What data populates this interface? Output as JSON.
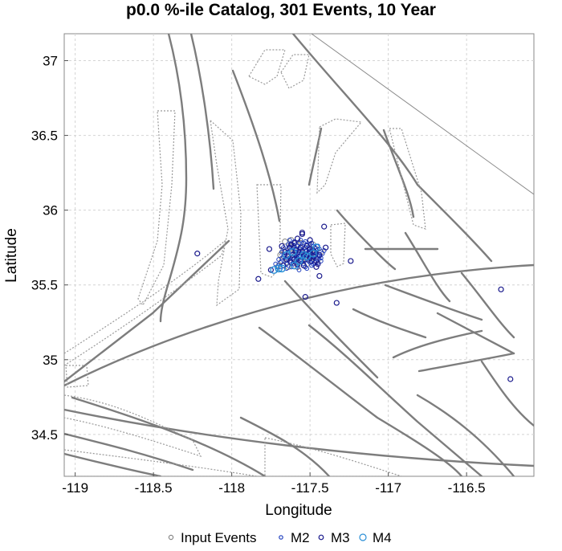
{
  "chart_data": {
    "type": "scatter",
    "title": "p0.0 %-ile Catalog, 301 Events, 10 Year",
    "xlabel": "Longitude",
    "ylabel": "Latitude",
    "xlim": [
      -119.07,
      -116.07
    ],
    "ylim": [
      34.22,
      37.18
    ],
    "x_ticks": [
      -119,
      -118.5,
      -118,
      -117.5,
      -117,
      -116.5
    ],
    "x_tick_labels": [
      "-119",
      "-118.5",
      "-118",
      "-117.5",
      "-117",
      "-116.5"
    ],
    "y_ticks": [
      34.5,
      35,
      35.5,
      36,
      36.5,
      37
    ],
    "y_tick_labels": [
      "34.5",
      "35",
      "35.5",
      "36",
      "36.5",
      "37"
    ],
    "grid": true,
    "legend_position": "bottom",
    "series_colors": {
      "Input Events": "#888888",
      "M2": "#1f3fbf",
      "M3": "#1a1a8c",
      "M4": "#2a8fd6"
    },
    "series": [
      {
        "name": "Input Events",
        "points": [
          [
            -117.66,
            35.79
          ],
          [
            -117.62,
            35.8
          ],
          [
            -117.58,
            35.77
          ],
          [
            -117.55,
            35.73
          ],
          [
            -117.5,
            35.72
          ],
          [
            -117.47,
            35.71
          ],
          [
            -117.63,
            35.76
          ],
          [
            -117.6,
            35.74
          ],
          [
            -117.57,
            35.7
          ],
          [
            -117.53,
            35.69
          ],
          [
            -117.49,
            35.68
          ],
          [
            -117.45,
            35.67
          ],
          [
            -117.65,
            35.68
          ],
          [
            -117.68,
            35.66
          ],
          [
            -117.7,
            35.63
          ],
          [
            -117.59,
            35.65
          ],
          [
            -117.55,
            35.66
          ],
          [
            -117.51,
            35.75
          ],
          [
            -117.46,
            35.74
          ],
          [
            -117.62,
            35.71
          ],
          [
            -117.67,
            35.73
          ],
          [
            -117.58,
            35.62
          ],
          [
            -117.52,
            35.64
          ],
          [
            -117.64,
            35.62
          ],
          [
            -117.56,
            35.78
          ],
          [
            -117.48,
            35.77
          ],
          [
            -117.43,
            35.72
          ],
          [
            -117.69,
            35.7
          ],
          [
            -117.61,
            35.68
          ],
          [
            -117.54,
            35.71
          ]
        ]
      },
      {
        "name": "M2",
        "points": [
          [
            -117.64,
            35.77
          ],
          [
            -117.6,
            35.76
          ],
          [
            -117.56,
            35.74
          ],
          [
            -117.52,
            35.73
          ],
          [
            -117.48,
            35.72
          ],
          [
            -117.45,
            35.7
          ],
          [
            -117.62,
            35.73
          ],
          [
            -117.58,
            35.71
          ],
          [
            -117.54,
            35.7
          ],
          [
            -117.5,
            35.69
          ],
          [
            -117.46,
            35.68
          ],
          [
            -117.66,
            35.7
          ],
          [
            -117.68,
            35.68
          ],
          [
            -117.63,
            35.66
          ],
          [
            -117.59,
            35.67
          ],
          [
            -117.55,
            35.68
          ],
          [
            -117.51,
            35.66
          ],
          [
            -117.47,
            35.65
          ],
          [
            -117.61,
            35.64
          ],
          [
            -117.57,
            35.65
          ],
          [
            -117.53,
            35.62
          ],
          [
            -117.49,
            35.63
          ],
          [
            -117.65,
            35.64
          ],
          [
            -117.69,
            35.65
          ],
          [
            -117.71,
            35.62
          ],
          [
            -117.6,
            35.79
          ],
          [
            -117.56,
            35.8
          ],
          [
            -117.52,
            35.77
          ],
          [
            -117.48,
            35.76
          ],
          [
            -117.44,
            35.74
          ],
          [
            -117.42,
            35.71
          ],
          [
            -117.43,
            35.68
          ],
          [
            -117.57,
            35.72
          ],
          [
            -117.53,
            35.75
          ],
          [
            -117.49,
            35.74
          ],
          [
            -117.62,
            35.69
          ],
          [
            -117.58,
            35.68
          ],
          [
            -117.54,
            35.66
          ],
          [
            -117.5,
            35.71
          ],
          [
            -117.46,
            35.73
          ],
          [
            -117.67,
            35.75
          ],
          [
            -117.63,
            35.8
          ],
          [
            -117.59,
            35.74
          ],
          [
            -117.55,
            35.76
          ],
          [
            -117.51,
            35.72
          ],
          [
            -117.47,
            35.7
          ],
          [
            -117.64,
            35.72
          ],
          [
            -117.6,
            35.7
          ],
          [
            -117.56,
            35.69
          ],
          [
            -117.52,
            35.68
          ],
          [
            -117.48,
            35.67
          ],
          [
            -117.45,
            35.65
          ],
          [
            -117.66,
            35.66
          ],
          [
            -117.62,
            35.62
          ],
          [
            -117.58,
            35.63
          ],
          [
            -117.54,
            35.64
          ],
          [
            -117.5,
            35.65
          ],
          [
            -117.7,
            35.67
          ],
          [
            -117.61,
            35.75
          ],
          [
            -117.57,
            35.78
          ],
          [
            -117.53,
            35.79
          ],
          [
            -117.49,
            35.78
          ],
          [
            -117.45,
            35.76
          ],
          [
            -117.41,
            35.73
          ],
          [
            -117.68,
            35.72
          ],
          [
            -117.64,
            35.74
          ],
          [
            -117.59,
            35.72
          ],
          [
            -117.55,
            35.71
          ],
          [
            -117.51,
            35.7
          ],
          [
            -117.47,
            35.69
          ],
          [
            -117.43,
            35.66
          ],
          [
            -117.63,
            35.68
          ],
          [
            -117.59,
            35.69
          ],
          [
            -117.55,
            35.73
          ],
          [
            -117.51,
            35.74
          ],
          [
            -117.47,
            35.75
          ],
          [
            -117.65,
            35.61
          ],
          [
            -117.57,
            35.6
          ],
          [
            -117.52,
            35.61
          ],
          [
            -117.6,
            35.66
          ],
          [
            -117.56,
            35.67
          ],
          [
            -117.48,
            35.64
          ],
          [
            -117.44,
            35.69
          ],
          [
            -117.67,
            35.69
          ],
          [
            -117.62,
            35.77
          ],
          [
            -117.58,
            35.76
          ],
          [
            -117.54,
            35.78
          ],
          [
            -117.5,
            35.77
          ],
          [
            -117.46,
            35.71
          ],
          [
            -117.72,
            35.64
          ],
          [
            -117.69,
            35.62
          ]
        ]
      },
      {
        "name": "M3",
        "points": [
          [
            -117.63,
            35.75
          ],
          [
            -117.59,
            35.73
          ],
          [
            -117.55,
            35.72
          ],
          [
            -117.51,
            35.71
          ],
          [
            -117.47,
            35.72
          ],
          [
            -117.61,
            35.7
          ],
          [
            -117.57,
            35.69
          ],
          [
            -117.53,
            35.67
          ],
          [
            -117.49,
            35.66
          ],
          [
            -117.65,
            35.67
          ],
          [
            -117.62,
            35.65
          ],
          [
            -117.58,
            35.64
          ],
          [
            -117.54,
            35.63
          ],
          [
            -117.5,
            35.68
          ],
          [
            -117.46,
            35.66
          ],
          [
            -117.6,
            35.78
          ],
          [
            -117.56,
            35.75
          ],
          [
            -117.52,
            35.76
          ],
          [
            -117.48,
            35.73
          ],
          [
            -117.44,
            35.7
          ],
          [
            -117.66,
            35.72
          ],
          [
            -117.64,
            35.69
          ],
          [
            -117.6,
            35.67
          ],
          [
            -117.56,
            35.66
          ],
          [
            -117.52,
            35.7
          ],
          [
            -117.48,
            35.69
          ],
          [
            -117.55,
            35.84
          ],
          [
            -117.55,
            35.85
          ],
          [
            -117.76,
            35.74
          ],
          [
            -117.62,
            35.77
          ],
          [
            -117.5,
            35.8
          ],
          [
            -117.4,
            35.75
          ],
          [
            -117.24,
            35.66
          ],
          [
            -118.22,
            35.71
          ],
          [
            -117.83,
            35.54
          ],
          [
            -117.53,
            35.42
          ],
          [
            -117.33,
            35.38
          ],
          [
            -117.44,
            35.56
          ],
          [
            -117.75,
            35.6
          ],
          [
            -117.45,
            35.64
          ],
          [
            -117.5,
            35.74
          ],
          [
            -117.67,
            35.63
          ],
          [
            -117.58,
            35.81
          ],
          [
            -117.41,
            35.89
          ],
          [
            -116.28,
            35.47
          ],
          [
            -116.22,
            34.87
          ],
          [
            -117.46,
            35.62
          ],
          [
            -117.68,
            35.76
          ]
        ]
      },
      {
        "name": "M4",
        "points": [
          [
            -117.68,
            35.61
          ],
          [
            -117.7,
            35.61
          ],
          [
            -117.6,
            35.63
          ],
          [
            -117.57,
            35.66
          ],
          [
            -117.54,
            35.7
          ],
          [
            -117.48,
            35.71
          ],
          [
            -117.65,
            35.7
          ],
          [
            -117.52,
            35.69
          ],
          [
            -117.61,
            35.72
          ],
          [
            -117.46,
            35.75
          ],
          [
            -117.73,
            35.6
          ]
        ]
      }
    ]
  },
  "legend": {
    "items": [
      {
        "label": "Input Events"
      },
      {
        "label": "M2"
      },
      {
        "label": "M3"
      },
      {
        "label": "M4"
      }
    ]
  }
}
